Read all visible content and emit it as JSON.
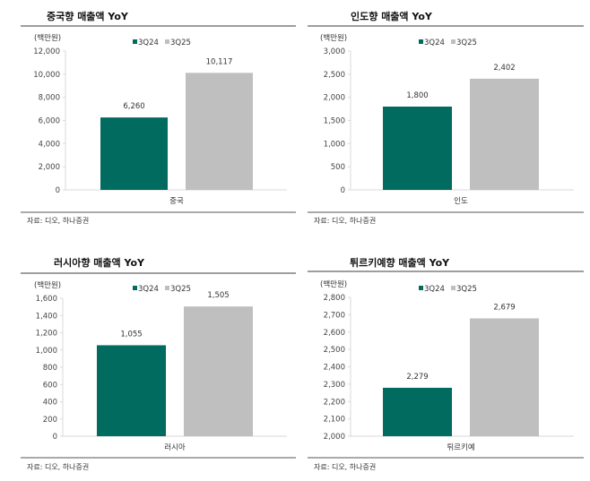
{
  "colors": {
    "3Q24": "#006B5E",
    "3Q25": "#BFBFBF",
    "rule": "#7F7F7F"
  },
  "chart_data": [
    {
      "type": "bar",
      "title": "중국향 매출액 YoY",
      "unit": "(백만원)",
      "categories": [
        "중국"
      ],
      "series": [
        {
          "name": "3Q24",
          "values": [
            6260
          ]
        },
        {
          "name": "3Q25",
          "values": [
            10117
          ]
        }
      ],
      "data_labels": [
        "6,260",
        "10,117"
      ],
      "ylim": [
        0,
        12000
      ],
      "yticks": [
        "0",
        "2,000",
        "4,000",
        "6,000",
        "8,000",
        "10,000",
        "12,000"
      ],
      "ystep": 2000,
      "legend": "top",
      "grid": false,
      "source": "자료: 디오, 하나증권"
    },
    {
      "type": "bar",
      "title": "인도향 매출액 YoY",
      "unit": "(백만원)",
      "categories": [
        "인도"
      ],
      "series": [
        {
          "name": "3Q24",
          "values": [
            1800
          ]
        },
        {
          "name": "3Q25",
          "values": [
            2402
          ]
        }
      ],
      "data_labels": [
        "1,800",
        "2,402"
      ],
      "ylim": [
        0,
        3000
      ],
      "yticks": [
        "0",
        "500",
        "1,000",
        "1,500",
        "2,000",
        "2,500",
        "3,000"
      ],
      "ystep": 500,
      "legend": "top",
      "grid": false,
      "source": "자료: 디오, 하나증권"
    },
    {
      "type": "bar",
      "title": "러시아향 매출액 YoY",
      "unit": "(백만원)",
      "categories": [
        "러시아"
      ],
      "series": [
        {
          "name": "3Q24",
          "values": [
            1055
          ]
        },
        {
          "name": "3Q25",
          "values": [
            1505
          ]
        }
      ],
      "data_labels": [
        "1,055",
        "1,505"
      ],
      "ylim": [
        0,
        1600
      ],
      "yticks": [
        "0",
        "200",
        "400",
        "600",
        "800",
        "1,000",
        "1,200",
        "1,400",
        "1,600"
      ],
      "ystep": 200,
      "legend": "top",
      "grid": false,
      "source": "자료: 디오, 하나증권"
    },
    {
      "type": "bar",
      "title": "튀르키예향 매출액 YoY",
      "unit": "(백만원)",
      "categories": [
        "튀르키예"
      ],
      "series": [
        {
          "name": "3Q24",
          "values": [
            2279
          ]
        },
        {
          "name": "3Q25",
          "values": [
            2679
          ]
        }
      ],
      "data_labels": [
        "2,279",
        "2,679"
      ],
      "ylim": [
        2000,
        2800
      ],
      "yticks": [
        "2,000",
        "2,100",
        "2,200",
        "2,300",
        "2,400",
        "2,500",
        "2,600",
        "2,700",
        "2,800"
      ],
      "ystep": 100,
      "legend": "top",
      "grid": false,
      "source": "자료: 디오, 하나증권"
    }
  ]
}
